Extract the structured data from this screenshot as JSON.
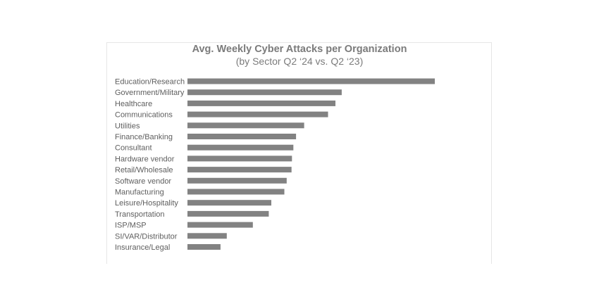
{
  "chart_data": {
    "type": "bar",
    "orientation": "horizontal",
    "title": "Avg. Weekly Cyber Attacks per Organization",
    "subtitle": "(by Sector Q2 ‘24 vs. Q2 ‘23)",
    "categories": [
      "Education/Research",
      "Government/Military",
      "Healthcare",
      "Communications",
      "Utilities",
      "Finance/Banking",
      "Consultant",
      "Hardware vendor",
      "Retail/Wholesale",
      "Software vendor",
      "Manufacturing",
      "Leisure/Hospitality",
      "Transportation",
      "ISP/MSP",
      "SI/VAR/Distributor",
      "Insurance/Legal"
    ],
    "values": [
      3341,
      2084,
      1999,
      1899,
      1576,
      1467,
      1431,
      1412,
      1406,
      1340,
      1309,
      1133,
      1098,
      883,
      531,
      446
    ],
    "xlim": [
      0,
      3341
    ],
    "grid": false,
    "legend": "none",
    "bar_color": "#828282"
  }
}
